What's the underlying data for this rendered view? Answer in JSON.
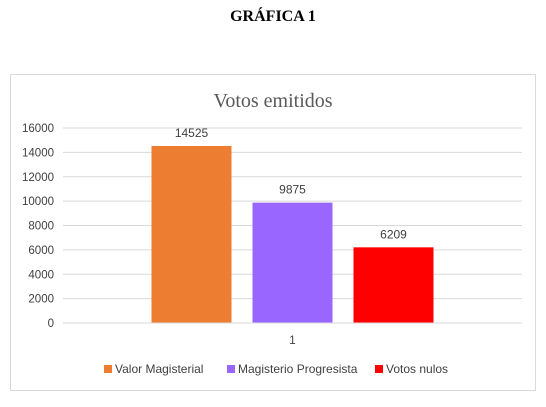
{
  "document": {
    "heading": "GRÁFICA 1"
  },
  "chart_data": {
    "type": "bar",
    "title": "Votos emitidos",
    "categories": [
      "1"
    ],
    "series": [
      {
        "name": "Valor Magisterial",
        "values": [
          14525
        ],
        "color": "#ed7d31"
      },
      {
        "name": "Magisterio Progresista",
        "values": [
          9875
        ],
        "color": "#9966ff"
      },
      {
        "name": "Votos nulos",
        "values": [
          6209
        ],
        "color": "#ff0000"
      }
    ],
    "y_ticks": [
      "0",
      "2000",
      "4000",
      "6000",
      "8000",
      "10000",
      "12000",
      "14000",
      "16000"
    ],
    "ylim": [
      0,
      16000
    ],
    "grid": true,
    "legend_position": "bottom",
    "data_labels": true
  }
}
